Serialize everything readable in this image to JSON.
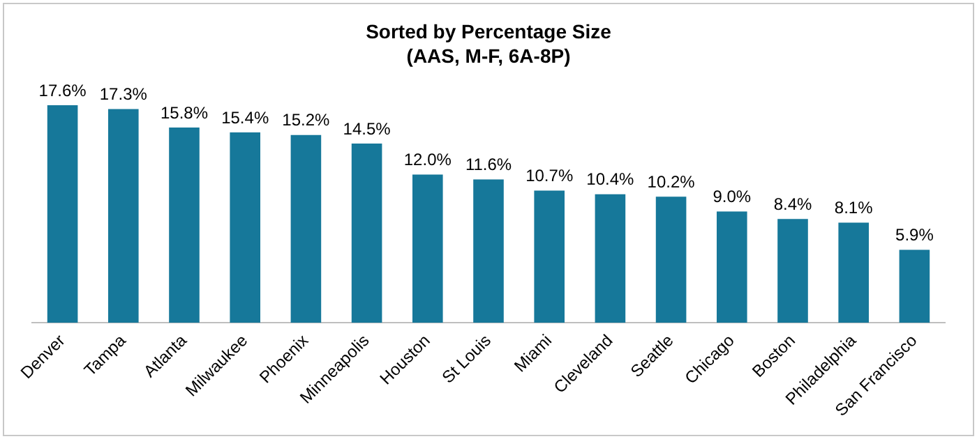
{
  "chart_data": {
    "type": "bar",
    "title": "Sorted by Percentage Size",
    "subtitle": "(AAS, M-F, 6A-8P)",
    "categories": [
      "Denver",
      "Tampa",
      "Atlanta",
      "Milwaukee",
      "Phoenix",
      "Minneapolis",
      "Houston",
      "St Louis",
      "Miami",
      "Cleveland",
      "Seattle",
      "Chicago",
      "Boston",
      "Philadelphia",
      "San Francisco"
    ],
    "values": [
      17.6,
      17.3,
      15.8,
      15.4,
      15.2,
      14.5,
      12.0,
      11.6,
      10.7,
      10.4,
      10.2,
      9.0,
      8.4,
      8.1,
      5.9
    ],
    "value_labels": [
      "17.6%",
      "17.3%",
      "15.8%",
      "15.4%",
      "15.2%",
      "14.5%",
      "12.0%",
      "11.6%",
      "10.7%",
      "10.4%",
      "10.2%",
      "9.0%",
      "8.4%",
      "8.1%",
      "5.9%"
    ],
    "color": "#16789a",
    "legend": false,
    "grid": false
  }
}
